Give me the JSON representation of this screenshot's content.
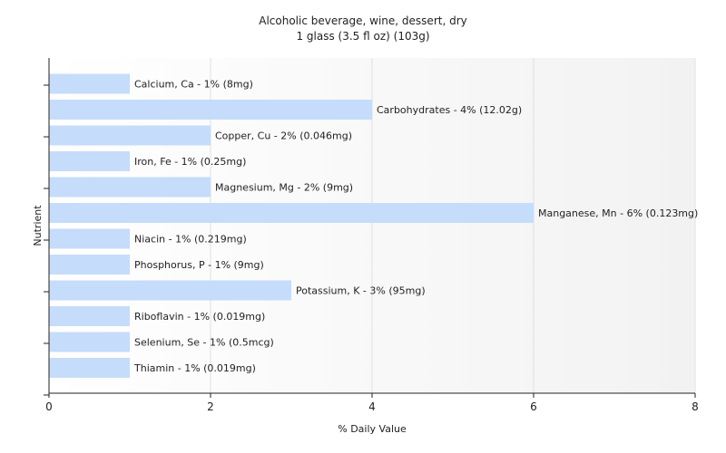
{
  "chart_data": {
    "type": "bar",
    "orientation": "horizontal",
    "title": "Alcoholic beverage, wine, dessert, dry",
    "subtitle": "1 glass (3.5 fl oz) (103g)",
    "xlabel": "% Daily Value",
    "ylabel": "Nutrient",
    "xlim": [
      0,
      8
    ],
    "xticks": [
      0,
      2,
      4,
      6,
      8
    ],
    "grid": true,
    "bar_color": "#c5dcfb",
    "categories": [
      "Calcium, Ca",
      "Carbohydrates",
      "Copper, Cu",
      "Iron, Fe",
      "Magnesium, Mg",
      "Manganese, Mn",
      "Niacin",
      "Phosphorus, P",
      "Potassium, K",
      "Riboflavin",
      "Selenium, Se",
      "Thiamin"
    ],
    "values": [
      1,
      4,
      2,
      1,
      2,
      6,
      1,
      1,
      3,
      1,
      1,
      1
    ],
    "bar_labels": [
      "Calcium, Ca - 1% (8mg)",
      "Carbohydrates - 4% (12.02g)",
      "Copper, Cu - 2% (0.046mg)",
      "Iron, Fe - 1% (0.25mg)",
      "Magnesium, Mg - 2% (9mg)",
      "Manganese, Mn - 6% (0.123mg)",
      "Niacin - 1% (0.219mg)",
      "Phosphorus, P - 1% (9mg)",
      "Potassium, K - 3% (95mg)",
      "Riboflavin - 1% (0.019mg)",
      "Selenium, Se - 1% (0.5mcg)",
      "Thiamin - 1% (0.019mg)"
    ]
  }
}
